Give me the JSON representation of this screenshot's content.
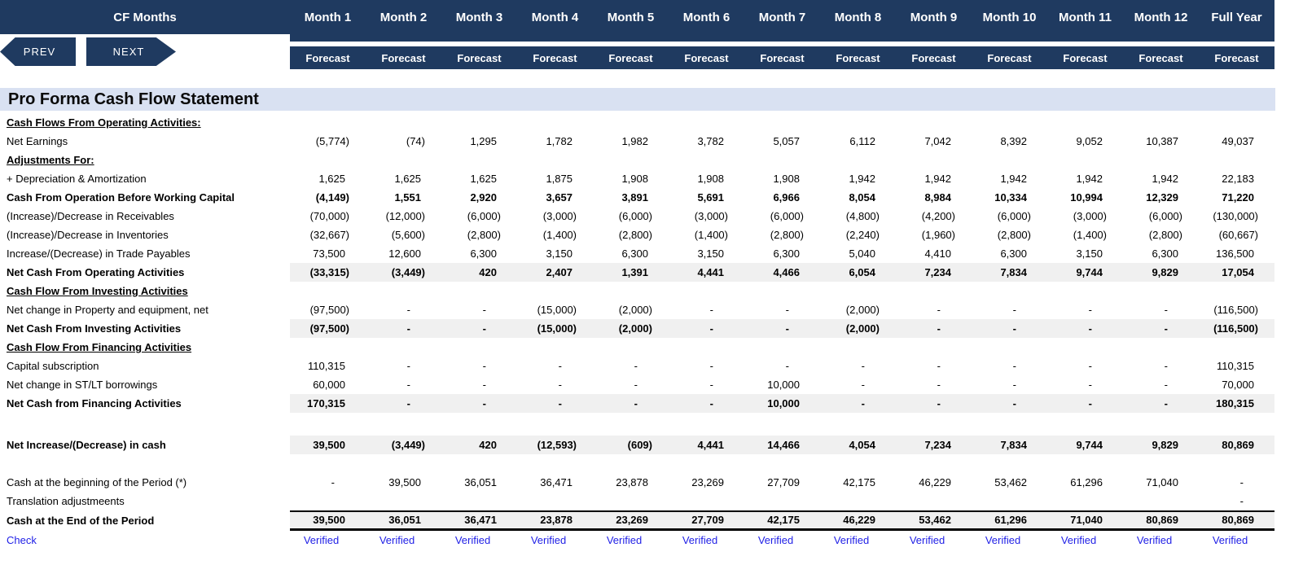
{
  "header": {
    "title": "CF Months",
    "prev_label": "PREV",
    "next_label": "NEXT",
    "columns": [
      "Month 1",
      "Month 2",
      "Month 3",
      "Month 4",
      "Month 5",
      "Month 6",
      "Month 7",
      "Month 8",
      "Month 9",
      "Month 10",
      "Month 11",
      "Month 12",
      "Full Year"
    ],
    "sub_label": "Forecast"
  },
  "sheet": {
    "title": "Pro Forma Cash Flow Statement"
  },
  "colors": {
    "navy": "#1F3A60",
    "title_band": "#D9E1F2",
    "row_stripe": "#F0F0F0",
    "check_blue": "#1E1EE6"
  },
  "rows": [
    {
      "type": "section",
      "label": "Cash Flows From Operating Activities:",
      "values": [
        "",
        "",
        "",
        "",
        "",
        "",
        "",
        "",
        "",
        "",
        "",
        "",
        ""
      ]
    },
    {
      "type": "data",
      "label": "Net Earnings",
      "values": [
        "(5,774)",
        "(74)",
        "1,295",
        "1,782",
        "1,982",
        "3,782",
        "5,057",
        "6,112",
        "7,042",
        "8,392",
        "9,052",
        "10,387",
        "49,037"
      ]
    },
    {
      "type": "section",
      "label": "Adjustments For:",
      "values": [
        "",
        "",
        "",
        "",
        "",
        "",
        "",
        "",
        "",
        "",
        "",
        "",
        ""
      ]
    },
    {
      "type": "data",
      "label": " + Depreciation & Amortization",
      "values": [
        "1,625",
        "1,625",
        "1,625",
        "1,875",
        "1,908",
        "1,908",
        "1,908",
        "1,942",
        "1,942",
        "1,942",
        "1,942",
        "1,942",
        "22,183"
      ]
    },
    {
      "type": "bolddata",
      "label": "Cash From Operation Before Working Capital",
      "values": [
        "(4,149)",
        "1,551",
        "2,920",
        "3,657",
        "3,891",
        "5,691",
        "6,966",
        "8,054",
        "8,984",
        "10,334",
        "10,994",
        "12,329",
        "71,220"
      ]
    },
    {
      "type": "data",
      "label": "(Increase)/Decrease in Receivables",
      "values": [
        "(70,000)",
        "(12,000)",
        "(6,000)",
        "(3,000)",
        "(6,000)",
        "(3,000)",
        "(6,000)",
        "(4,800)",
        "(4,200)",
        "(6,000)",
        "(3,000)",
        "(6,000)",
        "(130,000)"
      ]
    },
    {
      "type": "data",
      "label": "(Increase)/Decrease in Inventories",
      "values": [
        "(32,667)",
        "(5,600)",
        "(2,800)",
        "(1,400)",
        "(2,800)",
        "(1,400)",
        "(2,800)",
        "(2,240)",
        "(1,960)",
        "(2,800)",
        "(1,400)",
        "(2,800)",
        "(60,667)"
      ]
    },
    {
      "type": "data",
      "label": "Increase/(Decrease) in Trade Payables",
      "values": [
        "73,500",
        "12,600",
        "6,300",
        "3,150",
        "6,300",
        "3,150",
        "6,300",
        "5,040",
        "4,410",
        "6,300",
        "3,150",
        "6,300",
        "136,500"
      ]
    },
    {
      "type": "total",
      "label": "Net Cash From Operating Activities",
      "values": [
        "(33,315)",
        "(3,449)",
        "420",
        "2,407",
        "1,391",
        "4,441",
        "4,466",
        "6,054",
        "7,234",
        "7,834",
        "9,744",
        "9,829",
        "17,054"
      ]
    },
    {
      "type": "section",
      "label": "Cash Flow From Investing Activities",
      "values": [
        "",
        "",
        "",
        "",
        "",
        "",
        "",
        "",
        "",
        "",
        "",
        "",
        ""
      ]
    },
    {
      "type": "data",
      "label": "Net change in Property and equipment, net",
      "values": [
        "(97,500)",
        "-",
        "-",
        "(15,000)",
        "(2,000)",
        "-",
        "-",
        "(2,000)",
        "-",
        "-",
        "-",
        "-",
        "(116,500)"
      ]
    },
    {
      "type": "total",
      "label": "Net Cash From Investing Activities",
      "values": [
        "(97,500)",
        "-",
        "-",
        "(15,000)",
        "(2,000)",
        "-",
        "-",
        "(2,000)",
        "-",
        "-",
        "-",
        "-",
        "(116,500)"
      ]
    },
    {
      "type": "section",
      "label": "Cash Flow From Financing Activities",
      "values": [
        "",
        "",
        "",
        "",
        "",
        "",
        "",
        "",
        "",
        "",
        "",
        "",
        ""
      ]
    },
    {
      "type": "data",
      "label": "Capital subscription",
      "values": [
        "110,315",
        "-",
        "-",
        "-",
        "-",
        "-",
        "-",
        "-",
        "-",
        "-",
        "-",
        "-",
        "110,315"
      ]
    },
    {
      "type": "data",
      "label": "Net change in ST/LT borrowings",
      "values": [
        "60,000",
        "-",
        "-",
        "-",
        "-",
        "-",
        "10,000",
        "-",
        "-",
        "-",
        "-",
        "-",
        "70,000"
      ]
    },
    {
      "type": "total",
      "label": "Net Cash from Financing Activities",
      "values": [
        "170,315",
        "-",
        "-",
        "-",
        "-",
        "-",
        "10,000",
        "-",
        "-",
        "-",
        "-",
        "-",
        "180,315"
      ]
    },
    {
      "type": "spacer1",
      "label": "",
      "values": [
        "",
        "",
        "",
        "",
        "",
        "",
        "",
        "",
        "",
        "",
        "",
        "",
        ""
      ]
    },
    {
      "type": "total",
      "label": "Net Increase/(Decrease) in cash",
      "values": [
        "39,500",
        "(3,449)",
        "420",
        "(12,593)",
        "(609)",
        "4,441",
        "14,466",
        "4,054",
        "7,234",
        "7,834",
        "9,744",
        "9,829",
        "80,869"
      ]
    },
    {
      "type": "spacer2",
      "label": "",
      "values": [
        "",
        "",
        "",
        "",
        "",
        "",
        "",
        "",
        "",
        "",
        "",
        "",
        ""
      ]
    },
    {
      "type": "data",
      "label": "Cash at the beginning of the Period (*)",
      "values": [
        "-",
        "39,500",
        "36,051",
        "36,471",
        "23,878",
        "23,269",
        "27,709",
        "42,175",
        "46,229",
        "53,462",
        "61,296",
        "71,040",
        "-"
      ]
    },
    {
      "type": "data",
      "label": "Translation adjustmeents",
      "values": [
        "",
        "",
        "",
        "",
        "",
        "",
        "",
        "",
        "",
        "",
        "",
        "",
        "-"
      ]
    },
    {
      "type": "endtotal",
      "label": "Cash at the End of the Period",
      "values": [
        "39,500",
        "36,051",
        "36,471",
        "23,878",
        "23,269",
        "27,709",
        "42,175",
        "46,229",
        "53,462",
        "61,296",
        "71,040",
        "80,869",
        "80,869"
      ]
    },
    {
      "type": "check",
      "label": "Check",
      "values": [
        "Verified",
        "Verified",
        "Verified",
        "Verified",
        "Verified",
        "Verified",
        "Verified",
        "Verified",
        "Verified",
        "Verified",
        "Verified",
        "Verified",
        "Verified"
      ]
    }
  ]
}
